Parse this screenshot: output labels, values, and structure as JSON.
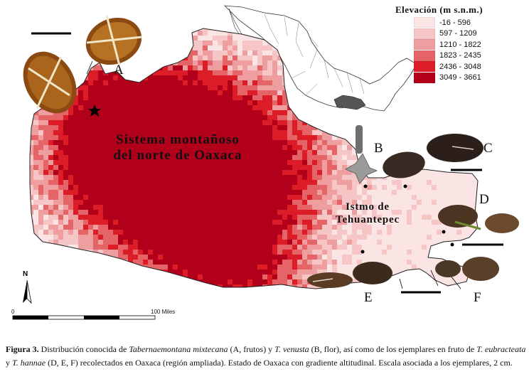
{
  "legend": {
    "title": "Elevación (m s.n.m.)",
    "items": [
      {
        "label": "-16 - 596",
        "color": "#fbe4e4"
      },
      {
        "label": "597 - 1209",
        "color": "#f6c6c6"
      },
      {
        "label": "1210 - 1822",
        "color": "#ee9e9e"
      },
      {
        "label": "1823 - 2435",
        "color": "#e46468"
      },
      {
        "label": "2436 - 3048",
        "color": "#dc1c26"
      },
      {
        "label": "3049 - 3661",
        "color": "#b3001a"
      }
    ]
  },
  "labels": {
    "region_north_line1": "Sistema montañoso",
    "region_north_line2": "del norte de Oaxaca",
    "isthmus_line1": "Istmo de",
    "isthmus_line2": "Tehuantepec"
  },
  "panels": [
    "A",
    "B",
    "C",
    "D",
    "E",
    "F"
  ],
  "north_arrow": "N",
  "scale_bar": {
    "start": "0",
    "end": "100",
    "unit": "Miles"
  },
  "caption": {
    "figure": "Figura 3.",
    "text_1": " Distribución conocida de ",
    "species_1": "Tabernaemontana mixtecana",
    "text_2": " (A, frutos) y ",
    "species_2": "T. venusta",
    "text_3": " (B, flor), así como de los ejemplares en fruto de ",
    "species_3": "T. eubracteata",
    "text_4": "  y ",
    "species_4": "T. hannae",
    "text_5": " (D, E, F) recolectados en Oaxaca (región ampliada). Estado de Oaxaca con gradiente altitudinal. Escala asociada a los ejemplares, 2 cm."
  },
  "colors": {
    "map_outline": "#222222",
    "mexico_highlight": "#555555"
  }
}
